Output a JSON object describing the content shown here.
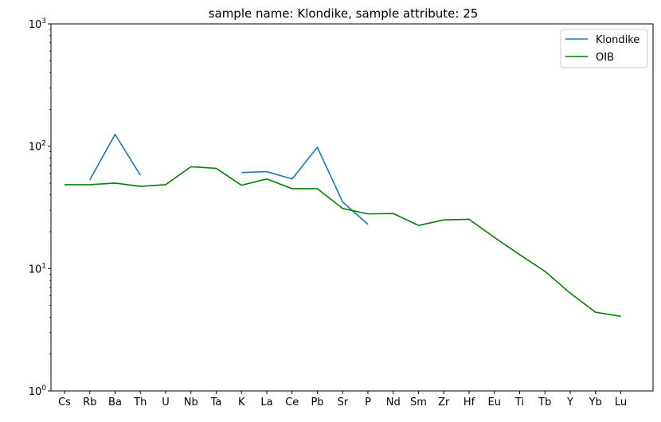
{
  "chart_data": {
    "type": "line",
    "title": "sample name: Klondike, sample attribute: 25",
    "xlabel": "",
    "ylabel": "",
    "yscale": "log",
    "ylim": [
      1,
      1000
    ],
    "y_ticks": [
      {
        "value": 1,
        "base": "10",
        "exp": "0"
      },
      {
        "value": 10,
        "base": "10",
        "exp": "1"
      },
      {
        "value": 100,
        "base": "10",
        "exp": "2"
      },
      {
        "value": 1000,
        "base": "10",
        "exp": "3"
      }
    ],
    "categories": [
      "Cs",
      "Rb",
      "Ba",
      "Th",
      "U",
      "Nb",
      "Ta",
      "K",
      "La",
      "Ce",
      "Pb",
      "Sr",
      "P",
      "Nd",
      "Sm",
      "Zr",
      "Hf",
      "Eu",
      "Ti",
      "Tb",
      "Y",
      "Yb",
      "Lu"
    ],
    "grid": false,
    "legend_position": "top-right",
    "series": [
      {
        "name": "Klondike",
        "color": "#1f77b4",
        "values": [
          null,
          53,
          125,
          58,
          null,
          null,
          null,
          61,
          62,
          54,
          98,
          35,
          23,
          null,
          null,
          null,
          null,
          null,
          null,
          null,
          null,
          null,
          null
        ]
      },
      {
        "name": "OIB",
        "color": "#008000",
        "values": [
          48.5,
          48.5,
          50,
          47,
          48.5,
          68,
          66,
          48,
          54,
          45,
          45,
          31,
          28,
          28.2,
          22.5,
          25,
          25.3,
          18,
          13,
          9.5,
          6.3,
          4.4,
          4.07
        ]
      }
    ]
  }
}
